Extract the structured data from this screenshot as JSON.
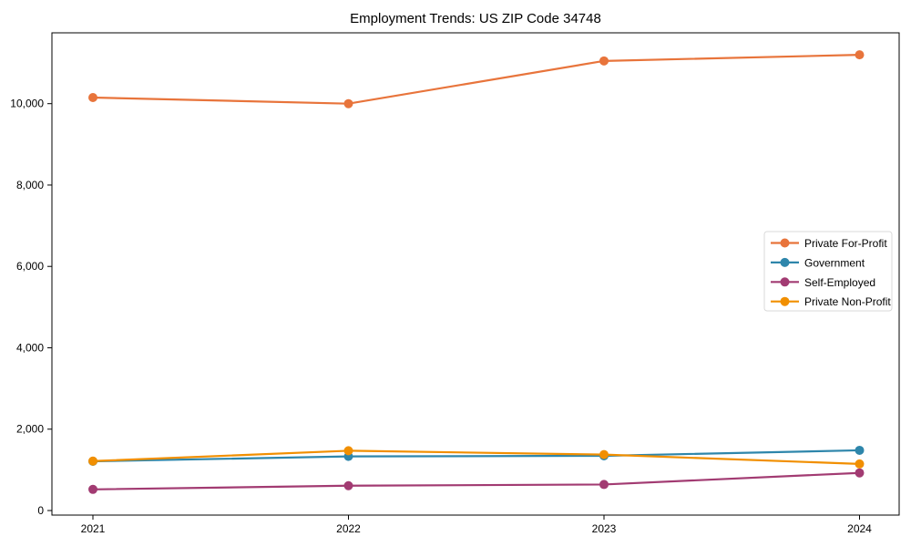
{
  "title": "Employment Trends: US ZIP Code 34748",
  "chart_data": {
    "type": "line",
    "title": "Employment Trends: US ZIP Code 34748",
    "xlabel": "",
    "ylabel": "",
    "categories": [
      "2021",
      "2022",
      "2023",
      "2024"
    ],
    "series": [
      {
        "name": "Private For-Profit",
        "color": "#E8743B",
        "values": [
          10150,
          10000,
          11050,
          11200
        ]
      },
      {
        "name": "Government",
        "color": "#2E86AB",
        "values": [
          1210,
          1330,
          1345,
          1480
        ]
      },
      {
        "name": "Self-Employed",
        "color": "#A23B72",
        "values": [
          520,
          610,
          640,
          925
        ]
      },
      {
        "name": "Private Non-Profit",
        "color": "#F18F01",
        "values": [
          1215,
          1470,
          1375,
          1145
        ]
      }
    ],
    "ylim": [
      0,
      11700
    ],
    "yticks": [
      0,
      2000,
      4000,
      6000,
      8000,
      10000
    ],
    "ytick_labels": [
      "0",
      "2,000",
      "4,000",
      "6,000",
      "8,000",
      "10,000"
    ],
    "grid": false,
    "marker": "circle",
    "legend_position": "center-right",
    "axis_color": "#000000",
    "background_color": "#ffffff",
    "legend_border_color": "#d9d9d9"
  }
}
